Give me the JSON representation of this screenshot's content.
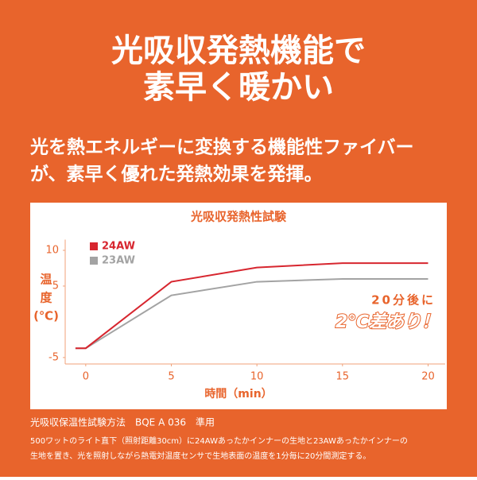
{
  "header": {
    "title_lines": [
      "光吸収発熱機能で",
      "素早く暖かい"
    ],
    "subtitle_lines": [
      "光を熱エネルギーに変換する機能性ファイバー",
      "が、素早く優れた発熱効果を発揮。"
    ]
  },
  "chart_data": {
    "type": "line",
    "title": "光吸収発熱性試験",
    "xlabel": "時間（min）",
    "ylabel_lines": [
      "温",
      "度",
      "(℃)"
    ],
    "x": [
      -0.6,
      0,
      5,
      10,
      15,
      20
    ],
    "series": [
      {
        "name": "24AW",
        "color": "#d7262f",
        "values": [
          -3.7,
          -3.7,
          5.6,
          7.6,
          8.2,
          8.2
        ]
      },
      {
        "name": "23AW",
        "color": "#a3a3a3",
        "values": [
          -3.7,
          -3.7,
          3.7,
          5.6,
          6.0,
          6.0
        ]
      }
    ],
    "xlim": [
      -1.2,
      21
    ],
    "xticks": [
      0,
      5,
      10,
      15,
      20
    ],
    "ylim": [
      -5.9,
      11.5
    ],
    "yticks": [
      -5,
      5,
      10
    ],
    "annotations": [
      "20分後に",
      "2℃差あり！"
    ]
  },
  "footer": {
    "method": "光吸収保温性試験方法　BQE A 036　準用",
    "notes": [
      "500ワットのライト直下（照射距離30cm）に24AWあったかインナーの生地と23AWあったかインナーの",
      "生地を置き、光を照射しながら熱電対温度センサで生地表面の温度を1分毎に20分間測定する。"
    ]
  }
}
